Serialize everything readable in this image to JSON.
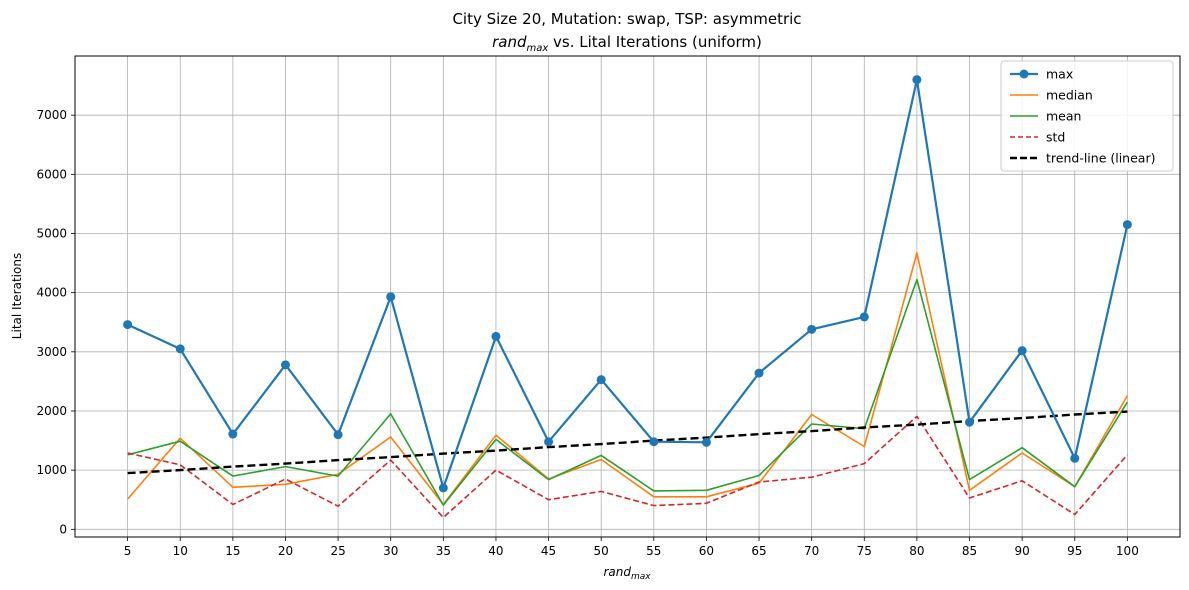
{
  "chart_data": {
    "type": "line",
    "title_line1": "City Size 20, Mutation: swap, TSP: asymmetric",
    "title_line2_var": "rand",
    "title_line2_sub": "max",
    "title_line2_rest": " vs. Lital Iterations (uniform)",
    "xlabel_var": "rand",
    "xlabel_sub": "max",
    "ylabel": "Lital Iterations",
    "x": [
      5,
      10,
      15,
      20,
      25,
      30,
      35,
      40,
      45,
      50,
      55,
      60,
      65,
      70,
      75,
      80,
      85,
      90,
      95,
      100
    ],
    "x_tick_labels": [
      "5",
      "10",
      "15",
      "20",
      "25",
      "30",
      "35",
      "40",
      "45",
      "50",
      "55",
      "60",
      "65",
      "70",
      "75",
      "80",
      "85",
      "90",
      "95",
      "100"
    ],
    "y_ticks": [
      0,
      1000,
      2000,
      3000,
      4000,
      5000,
      6000,
      7000
    ],
    "y_tick_labels": [
      "0",
      "1000",
      "2000",
      "3000",
      "4000",
      "5000",
      "6000",
      "7000"
    ],
    "ylim": [
      -130,
      8000
    ],
    "xlim": [
      0,
      105
    ],
    "grid": true,
    "legend_position": "top-right",
    "series": [
      {
        "name": "max",
        "color": "#1f77b4",
        "style": "solid-marker",
        "values": [
          3460,
          3050,
          1610,
          2780,
          1600,
          3930,
          700,
          3260,
          1480,
          2530,
          1480,
          1470,
          2640,
          3380,
          3590,
          7600,
          1810,
          3020,
          1200,
          5150
        ]
      },
      {
        "name": "median",
        "color": "#ff7f0e",
        "style": "solid",
        "values": [
          510,
          1540,
          710,
          760,
          930,
          1560,
          420,
          1590,
          850,
          1180,
          550,
          550,
          780,
          1940,
          1400,
          4670,
          660,
          1290,
          720,
          2260
        ]
      },
      {
        "name": "mean",
        "color": "#2ca02c",
        "style": "solid",
        "values": [
          1260,
          1490,
          900,
          1060,
          900,
          1950,
          410,
          1520,
          840,
          1250,
          650,
          660,
          910,
          1780,
          1700,
          4220,
          840,
          1380,
          720,
          2150
        ]
      },
      {
        "name": "std",
        "color": "#d62728",
        "style": "dashed",
        "values": [
          1290,
          1090,
          420,
          850,
          390,
          1170,
          200,
          1000,
          500,
          640,
          400,
          440,
          800,
          880,
          1110,
          1910,
          530,
          820,
          250,
          1260
        ]
      },
      {
        "name": "trend-line (linear)",
        "color": "#000000",
        "style": "dashed-thick",
        "values": [
          950,
          1000,
          1060,
          1110,
          1170,
          1220,
          1280,
          1330,
          1390,
          1440,
          1500,
          1550,
          1610,
          1660,
          1720,
          1770,
          1830,
          1880,
          1940,
          1990
        ]
      }
    ]
  }
}
